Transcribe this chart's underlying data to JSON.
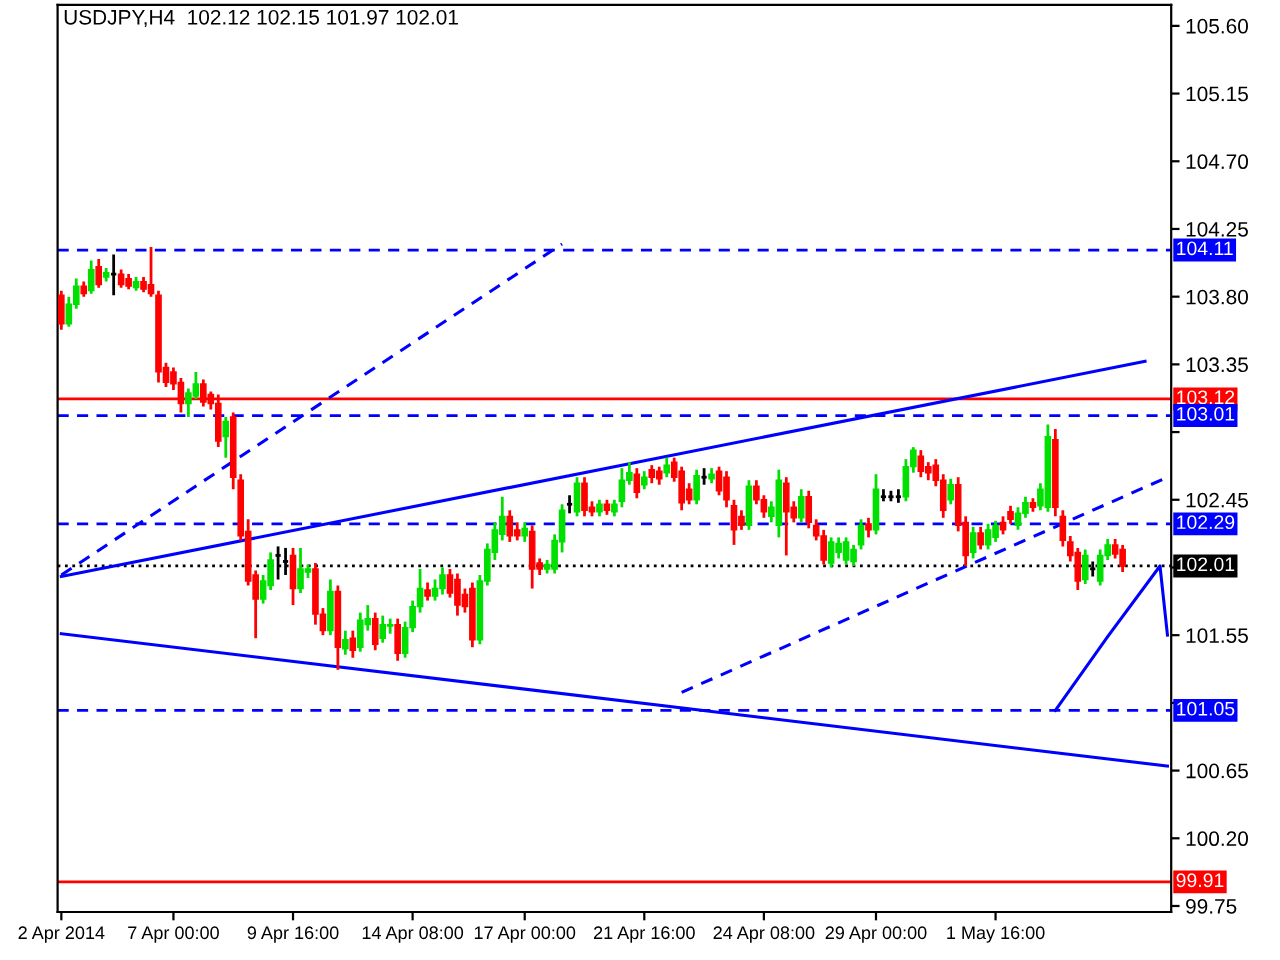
{
  "chart_data": {
    "type": "candlestick",
    "title": "USDJPY,H4  102.12 102.15 101.97 102.01",
    "categories": [
      "2 Apr 2014",
      null,
      null,
      null,
      null,
      null,
      null,
      null,
      null,
      null,
      null,
      null,
      null,
      null,
      null,
      "7 Apr 00:00",
      null,
      null,
      null,
      null,
      null,
      null,
      null,
      null,
      null,
      null,
      null,
      null,
      null,
      null,
      null,
      "9 Apr 16:00",
      null,
      null,
      null,
      null,
      null,
      null,
      null,
      null,
      null,
      null,
      null,
      null,
      null,
      null,
      null,
      "14 Apr 08:00",
      null,
      null,
      null,
      null,
      null,
      null,
      null,
      null,
      null,
      null,
      null,
      null,
      null,
      null,
      "17 Apr 00:00",
      null,
      null,
      null,
      null,
      null,
      null,
      null,
      null,
      null,
      null,
      null,
      null,
      null,
      null,
      null,
      "21 Apr 16:00",
      null,
      null,
      null,
      null,
      null,
      null,
      null,
      null,
      null,
      null,
      null,
      null,
      null,
      null,
      null,
      "24 Apr 08:00",
      null,
      null,
      null,
      null,
      null,
      null,
      null,
      null,
      null,
      null,
      null,
      null,
      null,
      null,
      "29 Apr 00:00",
      null,
      null,
      null,
      null,
      null,
      null,
      null,
      null,
      null,
      null,
      null,
      null,
      null,
      null,
      null,
      "1 May 16:00",
      null,
      null,
      null,
      null,
      null,
      null,
      null,
      null,
      null,
      null,
      null,
      null,
      null,
      null,
      null,
      null,
      null,
      null,
      null,
      null,
      null,
      null,
      null
    ],
    "ohlc": [
      [
        103.81,
        103.84,
        103.58,
        103.62
      ],
      [
        103.62,
        103.8,
        103.6,
        103.75
      ],
      [
        103.75,
        103.92,
        103.72,
        103.87
      ],
      [
        103.87,
        103.9,
        103.8,
        103.82
      ],
      [
        103.84,
        104.04,
        103.82,
        103.98
      ],
      [
        104.0,
        104.05,
        103.86,
        103.88
      ],
      [
        103.93,
        103.99,
        103.9,
        103.96
      ],
      [
        103.95,
        104.08,
        103.81,
        103.95
      ],
      [
        103.95,
        103.98,
        103.86,
        103.88
      ],
      [
        103.92,
        103.95,
        103.85,
        103.87
      ],
      [
        103.86,
        103.93,
        103.84,
        103.9
      ],
      [
        103.9,
        103.93,
        103.83,
        103.85
      ],
      [
        103.88,
        104.13,
        103.8,
        103.82
      ],
      [
        103.81,
        103.84,
        103.23,
        103.3
      ],
      [
        103.33,
        103.36,
        103.2,
        103.23
      ],
      [
        103.3,
        103.33,
        103.18,
        103.22
      ],
      [
        103.23,
        103.26,
        103.03,
        103.09
      ],
      [
        103.09,
        103.19,
        103.0,
        103.16
      ],
      [
        103.14,
        103.3,
        103.12,
        103.22
      ],
      [
        103.22,
        103.25,
        103.07,
        103.1
      ],
      [
        103.15,
        103.17,
        103.05,
        103.09
      ],
      [
        103.09,
        103.15,
        102.8,
        102.84
      ],
      [
        102.87,
        103.0,
        102.73,
        102.97
      ],
      [
        103.0,
        103.03,
        102.52,
        102.6
      ],
      [
        102.58,
        102.62,
        102.18,
        102.21
      ],
      [
        102.24,
        102.32,
        101.88,
        101.91
      ],
      [
        101.95,
        101.98,
        101.53,
        101.79
      ],
      [
        101.79,
        101.95,
        101.76,
        101.91
      ],
      [
        101.88,
        102.1,
        101.85,
        102.05
      ],
      [
        102.08,
        102.14,
        101.92,
        102.08
      ],
      [
        102.04,
        102.13,
        101.95,
        102.04
      ],
      [
        102.08,
        102.13,
        101.75,
        101.86
      ],
      [
        101.86,
        102.13,
        101.83,
        101.99
      ],
      [
        101.97,
        102.02,
        101.93,
        101.99
      ],
      [
        101.99,
        102.03,
        101.62,
        101.69
      ],
      [
        101.69,
        101.73,
        101.55,
        101.58
      ],
      [
        101.58,
        101.92,
        101.55,
        101.84
      ],
      [
        101.84,
        101.88,
        101.32,
        101.47
      ],
      [
        101.46,
        101.58,
        101.42,
        101.52
      ],
      [
        101.53,
        101.58,
        101.4,
        101.45
      ],
      [
        101.47,
        101.7,
        101.44,
        101.65
      ],
      [
        101.62,
        101.75,
        101.58,
        101.66
      ],
      [
        101.66,
        101.7,
        101.45,
        101.49
      ],
      [
        101.53,
        101.68,
        101.5,
        101.62
      ],
      [
        101.61,
        101.66,
        101.56,
        101.62
      ],
      [
        101.62,
        101.66,
        101.38,
        101.43
      ],
      [
        101.43,
        101.64,
        101.4,
        101.6
      ],
      [
        101.6,
        101.78,
        101.57,
        101.74
      ],
      [
        101.74,
        101.99,
        101.7,
        101.86
      ],
      [
        101.85,
        101.9,
        101.78,
        101.81
      ],
      [
        101.81,
        101.92,
        101.78,
        101.86
      ],
      [
        101.86,
        102.0,
        101.82,
        101.95
      ],
      [
        101.95,
        101.99,
        101.8,
        101.83
      ],
      [
        101.92,
        101.96,
        101.68,
        101.75
      ],
      [
        101.82,
        101.86,
        101.7,
        101.74
      ],
      [
        101.86,
        101.9,
        101.47,
        101.52
      ],
      [
        101.52,
        101.95,
        101.49,
        101.91
      ],
      [
        101.91,
        102.16,
        101.88,
        102.12
      ],
      [
        102.1,
        102.3,
        102.05,
        102.25
      ],
      [
        102.22,
        102.47,
        102.18,
        102.34
      ],
      [
        102.34,
        102.38,
        102.17,
        102.21
      ],
      [
        102.25,
        102.3,
        102.18,
        102.21
      ],
      [
        102.21,
        102.3,
        102.17,
        102.26
      ],
      [
        102.24,
        102.28,
        101.86,
        101.99
      ],
      [
        102.03,
        102.06,
        101.95,
        101.99
      ],
      [
        101.99,
        102.05,
        101.96,
        102.02
      ],
      [
        101.99,
        102.22,
        101.96,
        102.18
      ],
      [
        102.17,
        102.42,
        102.1,
        102.38
      ],
      [
        102.42,
        102.48,
        102.36,
        102.42
      ],
      [
        102.37,
        102.6,
        102.34,
        102.56
      ],
      [
        102.56,
        102.6,
        102.34,
        102.38
      ],
      [
        102.4,
        102.44,
        102.34,
        102.37
      ],
      [
        102.37,
        102.45,
        102.34,
        102.42
      ],
      [
        102.42,
        102.45,
        102.35,
        102.38
      ],
      [
        102.37,
        102.45,
        102.34,
        102.42
      ],
      [
        102.44,
        102.66,
        102.4,
        102.58
      ],
      [
        102.58,
        102.7,
        102.55,
        102.63
      ],
      [
        102.62,
        102.66,
        102.46,
        102.5
      ],
      [
        102.55,
        102.64,
        102.52,
        102.6
      ],
      [
        102.65,
        102.68,
        102.56,
        102.6
      ],
      [
        102.64,
        102.67,
        102.55,
        102.59
      ],
      [
        102.63,
        102.73,
        102.6,
        102.68
      ],
      [
        102.7,
        102.73,
        102.57,
        102.6
      ],
      [
        102.64,
        102.67,
        102.38,
        102.43
      ],
      [
        102.52,
        102.56,
        102.42,
        102.45
      ],
      [
        102.45,
        102.65,
        102.42,
        102.61
      ],
      [
        102.6,
        102.66,
        102.55,
        102.6
      ],
      [
        102.59,
        102.66,
        102.56,
        102.62
      ],
      [
        102.64,
        102.67,
        102.48,
        102.51
      ],
      [
        102.6,
        102.64,
        102.4,
        102.45
      ],
      [
        102.41,
        102.45,
        102.15,
        102.25
      ],
      [
        102.34,
        102.38,
        102.25,
        102.28
      ],
      [
        102.28,
        102.58,
        102.25,
        102.54
      ],
      [
        102.54,
        102.58,
        102.42,
        102.45
      ],
      [
        102.45,
        102.48,
        102.33,
        102.37
      ],
      [
        102.34,
        102.44,
        102.3,
        102.4
      ],
      [
        102.28,
        102.65,
        102.2,
        102.58
      ],
      [
        102.56,
        102.6,
        102.08,
        102.37
      ],
      [
        102.4,
        102.44,
        102.3,
        102.33
      ],
      [
        102.33,
        102.52,
        102.3,
        102.47
      ],
      [
        102.47,
        102.51,
        102.26,
        102.3
      ],
      [
        102.28,
        102.32,
        102.18,
        102.21
      ],
      [
        102.21,
        102.25,
        102.02,
        102.05
      ],
      [
        102.03,
        102.2,
        102.0,
        102.17
      ],
      [
        102.1,
        102.2,
        102.06,
        102.16
      ],
      [
        102.05,
        102.2,
        102.02,
        102.17
      ],
      [
        102.04,
        102.15,
        102.01,
        102.12
      ],
      [
        102.15,
        102.32,
        102.12,
        102.28
      ],
      [
        102.29,
        102.33,
        102.2,
        102.25
      ],
      [
        102.25,
        102.62,
        102.22,
        102.52
      ],
      [
        102.47,
        102.52,
        102.44,
        102.47
      ],
      [
        102.47,
        102.51,
        102.44,
        102.47
      ],
      [
        102.47,
        102.52,
        102.43,
        102.47
      ],
      [
        102.47,
        102.72,
        102.44,
        102.67
      ],
      [
        102.67,
        102.8,
        102.63,
        102.78
      ],
      [
        102.74,
        102.78,
        102.6,
        102.64
      ],
      [
        102.67,
        102.7,
        102.58,
        102.63
      ],
      [
        102.68,
        102.72,
        102.54,
        102.58
      ],
      [
        102.58,
        102.62,
        102.33,
        102.38
      ],
      [
        102.45,
        102.59,
        102.42,
        102.55
      ],
      [
        102.55,
        102.6,
        102.24,
        102.28
      ],
      [
        102.3,
        102.34,
        102.01,
        102.08
      ],
      [
        102.1,
        102.27,
        102.06,
        102.23
      ],
      [
        102.23,
        102.27,
        102.12,
        102.15
      ],
      [
        102.15,
        102.29,
        102.12,
        102.25
      ],
      [
        102.2,
        102.31,
        102.17,
        102.28
      ],
      [
        102.3,
        102.34,
        102.22,
        102.25
      ],
      [
        102.37,
        102.41,
        102.29,
        102.32
      ],
      [
        102.28,
        102.4,
        102.25,
        102.36
      ],
      [
        102.36,
        102.47,
        102.33,
        102.43
      ],
      [
        102.43,
        102.46,
        102.37,
        102.4
      ],
      [
        102.41,
        102.56,
        102.38,
        102.52
      ],
      [
        102.4,
        102.95,
        102.37,
        102.87
      ],
      [
        102.85,
        102.92,
        102.34,
        102.4
      ],
      [
        102.34,
        102.38,
        102.14,
        102.18
      ],
      [
        102.17,
        102.21,
        102.04,
        102.08
      ],
      [
        102.1,
        102.13,
        101.85,
        101.91
      ],
      [
        101.92,
        102.12,
        101.89,
        102.08
      ],
      [
        101.99,
        102.04,
        101.94,
        101.99
      ],
      [
        101.91,
        102.12,
        101.88,
        102.08
      ],
      [
        102.08,
        102.19,
        102.05,
        102.15
      ],
      [
        102.15,
        102.19,
        102.06,
        102.09
      ],
      [
        102.12,
        102.15,
        101.97,
        102.01
      ],
      null,
      null,
      null,
      null,
      null,
      null
    ],
    "series": [
      {
        "type": "line",
        "color": "#0000ff",
        "line_style": "solid",
        "values": [
          101.94,
          null,
          null,
          null,
          null,
          null,
          null,
          null,
          null,
          null,
          null,
          null,
          null,
          null,
          null,
          null,
          null,
          null,
          null,
          null,
          null,
          null,
          null,
          null,
          null,
          null,
          null,
          null,
          null,
          null,
          null,
          null,
          null,
          null,
          null,
          null,
          null,
          null,
          null,
          null,
          null,
          null,
          null,
          null,
          null,
          null,
          null,
          null,
          null,
          null,
          null,
          null,
          null,
          null,
          null,
          null,
          null,
          null,
          null,
          null,
          null,
          null,
          null,
          null,
          null,
          null,
          null,
          null,
          null,
          null,
          null,
          null,
          null,
          null,
          null,
          null,
          null,
          null,
          null,
          null,
          null,
          null,
          null,
          null,
          null,
          null,
          null,
          null,
          null,
          null,
          null,
          null,
          null,
          null,
          null,
          null,
          null,
          null,
          null,
          null,
          null,
          null,
          null,
          null,
          null,
          null,
          null,
          null,
          null,
          null,
          null,
          null,
          null,
          null,
          null,
          null,
          null,
          null,
          null,
          null,
          null,
          null,
          null,
          null,
          null,
          null,
          null,
          null,
          null,
          null,
          null,
          null,
          null,
          null,
          null,
          null,
          null,
          null,
          null,
          null,
          null,
          null,
          null,
          null,
          null,
          103.37,
          null,
          null,
          null
        ]
      },
      {
        "type": "line",
        "color": "#0000ff",
        "line_style": "solid",
        "values": [
          101.56,
          null,
          null,
          null,
          null,
          null,
          null,
          null,
          null,
          null,
          null,
          null,
          null,
          null,
          null,
          null,
          null,
          null,
          null,
          null,
          null,
          null,
          null,
          null,
          null,
          null,
          null,
          null,
          null,
          null,
          null,
          null,
          null,
          null,
          null,
          null,
          null,
          null,
          null,
          null,
          null,
          null,
          null,
          null,
          null,
          null,
          null,
          null,
          null,
          null,
          null,
          null,
          null,
          null,
          null,
          null,
          null,
          null,
          null,
          null,
          null,
          null,
          null,
          null,
          null,
          null,
          null,
          null,
          null,
          null,
          null,
          null,
          null,
          null,
          null,
          null,
          null,
          null,
          null,
          null,
          null,
          null,
          null,
          null,
          null,
          null,
          null,
          null,
          null,
          null,
          null,
          null,
          null,
          null,
          null,
          null,
          null,
          null,
          null,
          null,
          null,
          null,
          null,
          null,
          null,
          null,
          null,
          null,
          null,
          null,
          null,
          null,
          null,
          null,
          null,
          null,
          null,
          null,
          null,
          null,
          null,
          null,
          null,
          null,
          null,
          null,
          null,
          null,
          null,
          null,
          null,
          null,
          null,
          null,
          null,
          null,
          null,
          null,
          null,
          null,
          null,
          null,
          null,
          null,
          null,
          null,
          null,
          null,
          100.68
        ]
      },
      {
        "type": "line",
        "color": "#0000ff",
        "line_style": "solid",
        "values": [
          null,
          null,
          null,
          null,
          null,
          null,
          null,
          null,
          null,
          null,
          null,
          null,
          null,
          null,
          null,
          null,
          null,
          null,
          null,
          null,
          null,
          null,
          null,
          null,
          null,
          null,
          null,
          null,
          null,
          null,
          null,
          null,
          null,
          null,
          null,
          null,
          null,
          null,
          null,
          null,
          null,
          null,
          null,
          null,
          null,
          null,
          null,
          null,
          null,
          null,
          null,
          null,
          null,
          null,
          null,
          null,
          null,
          null,
          null,
          null,
          null,
          null,
          null,
          null,
          null,
          null,
          null,
          null,
          null,
          null,
          null,
          null,
          null,
          null,
          null,
          null,
          null,
          null,
          null,
          null,
          null,
          null,
          null,
          null,
          null,
          null,
          null,
          null,
          null,
          null,
          null,
          null,
          null,
          null,
          null,
          null,
          null,
          null,
          null,
          null,
          null,
          null,
          null,
          null,
          null,
          null,
          null,
          null,
          null,
          null,
          null,
          null,
          null,
          null,
          null,
          null,
          null,
          null,
          null,
          null,
          null,
          null,
          null,
          null,
          null,
          null,
          null,
          null,
          null,
          null,
          null,
          null,
          null,
          101.05,
          null,
          null,
          null,
          null,
          null,
          null,
          101.54,
          null,
          null,
          null,
          null,
          null,
          null,
          102.01,
          101.55
        ]
      },
      {
        "type": "line",
        "color": "#0000ff",
        "line_style": "dashed",
        "values": [
          101.95,
          null,
          null,
          null,
          null,
          null,
          null,
          null,
          null,
          null,
          null,
          null,
          null,
          null,
          null,
          null,
          null,
          null,
          null,
          null,
          null,
          null,
          null,
          null,
          null,
          null,
          null,
          null,
          null,
          null,
          null,
          null,
          null,
          null,
          null,
          null,
          null,
          null,
          null,
          null,
          null,
          null,
          null,
          null,
          null,
          null,
          null,
          null,
          null,
          null,
          null,
          null,
          null,
          null,
          null,
          null,
          null,
          null,
          null,
          null,
          null,
          null,
          null,
          null,
          null,
          null,
          null,
          104.15,
          null,
          null,
          null,
          null,
          null,
          null,
          null,
          null,
          null,
          null,
          null,
          null,
          null,
          null,
          null,
          null,
          null,
          null,
          null,
          null,
          null,
          null,
          null,
          null,
          null,
          null,
          null,
          null,
          null,
          null,
          null,
          null,
          null,
          null,
          null,
          null,
          null,
          null,
          null,
          null,
          null,
          null,
          null,
          null,
          null,
          null,
          null,
          null,
          null,
          null,
          null,
          null,
          null,
          null,
          null,
          null,
          null,
          null,
          null,
          null,
          null,
          null,
          null,
          null,
          null,
          null,
          null,
          null,
          null,
          null,
          null,
          null,
          null,
          null,
          null,
          null,
          null,
          null,
          null,
          null,
          null
        ]
      },
      {
        "type": "line",
        "color": "#0000ff",
        "line_style": "dashed",
        "values": [
          null,
          null,
          null,
          null,
          null,
          null,
          null,
          null,
          null,
          null,
          null,
          null,
          null,
          null,
          null,
          null,
          null,
          null,
          null,
          null,
          null,
          null,
          null,
          null,
          null,
          null,
          null,
          null,
          null,
          null,
          null,
          null,
          null,
          null,
          null,
          null,
          null,
          null,
          null,
          null,
          null,
          null,
          null,
          null,
          null,
          null,
          null,
          null,
          null,
          null,
          null,
          null,
          null,
          null,
          null,
          null,
          null,
          null,
          null,
          null,
          null,
          null,
          null,
          null,
          null,
          null,
          null,
          null,
          null,
          null,
          null,
          null,
          null,
          null,
          null,
          null,
          null,
          null,
          null,
          null,
          null,
          null,
          null,
          101.17,
          null,
          null,
          null,
          null,
          null,
          null,
          null,
          null,
          null,
          null,
          null,
          null,
          null,
          null,
          null,
          null,
          null,
          null,
          null,
          null,
          null,
          null,
          null,
          null,
          null,
          null,
          null,
          null,
          null,
          null,
          null,
          null,
          null,
          null,
          null,
          null,
          null,
          null,
          null,
          null,
          null,
          null,
          null,
          null,
          null,
          null,
          null,
          null,
          null,
          null,
          null,
          null,
          null,
          null,
          null,
          null,
          null,
          null,
          null,
          null,
          null,
          null,
          null,
          null,
          102.6
        ]
      }
    ],
    "ylim": [
      99.71,
      105.74
    ],
    "yticks": [
      99.75,
      {
        "value": 100.2,
        "label": "100.20"
      },
      100.65,
      {
        "value": 101.1,
        "label": null
      },
      101.55,
      {
        "value": 102.0,
        "label": null
      },
      102.45,
      {
        "value": 102.9,
        "label": null
      },
      103.35,
      {
        "value": 103.8,
        "label": "103.80"
      },
      104.25,
      {
        "value": 104.7,
        "label": "104.70"
      },
      105.15,
      {
        "value": 105.6,
        "label": "105.60"
      }
    ],
    "ref_lines": [
      {
        "axis": "y",
        "value": 104.11,
        "label": "104.11",
        "color": "#0000ff",
        "line_style": "dashed"
      },
      {
        "axis": "y",
        "value": 103.12,
        "label": "103.12",
        "color": "#ff0000",
        "line_style": "solid"
      },
      {
        "axis": "y",
        "value": 103.01,
        "label": "103.01",
        "color": "#0000ff",
        "line_style": "dashed"
      },
      {
        "axis": "y",
        "value": 102.29,
        "label": "102.29",
        "color": "#0000ff",
        "line_style": "dashed"
      },
      {
        "axis": "y",
        "value": 102.01,
        "label": "102.01",
        "color": "#000000",
        "line_style": "dotted"
      },
      {
        "axis": "y",
        "value": 101.05,
        "label": "101.05",
        "color": "#0000ff",
        "line_style": "dashed"
      },
      {
        "axis": "y",
        "value": 99.91,
        "label": "99.91",
        "color": "#ff0000",
        "line_style": "solid"
      }
    ],
    "grid": false,
    "legend": false
  }
}
